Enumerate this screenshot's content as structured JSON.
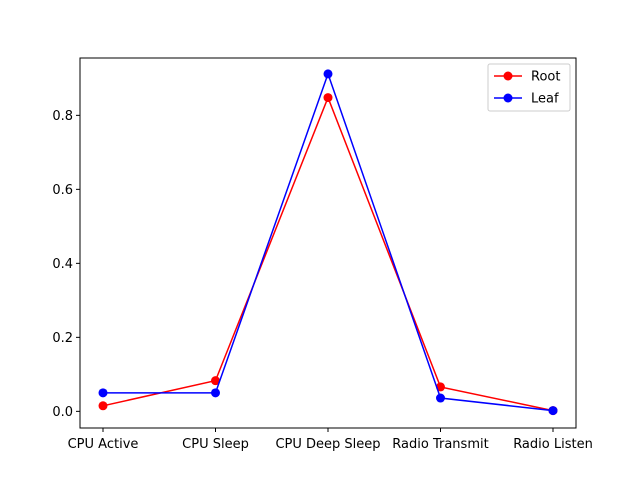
{
  "chart_data": {
    "type": "line",
    "title": "",
    "xlabel": "",
    "ylabel": "",
    "categories": [
      "CPU Active",
      "CPU Sleep",
      "CPU Deep Sleep",
      "Radio Transmit",
      "Radio Listen"
    ],
    "ylim": [
      -0.045,
      0.955
    ],
    "yticks": [
      "0.0",
      "0.2",
      "0.4",
      "0.6",
      "0.8"
    ],
    "grid": false,
    "legend_position": "upper right",
    "series": [
      {
        "name": "Root",
        "color": "#ff0000",
        "values": [
          0.015,
          0.083,
          0.848,
          0.066,
          0.002
        ]
      },
      {
        "name": "Leaf",
        "color": "#0000ff",
        "values": [
          0.05,
          0.05,
          0.912,
          0.036,
          0.002
        ]
      }
    ]
  }
}
